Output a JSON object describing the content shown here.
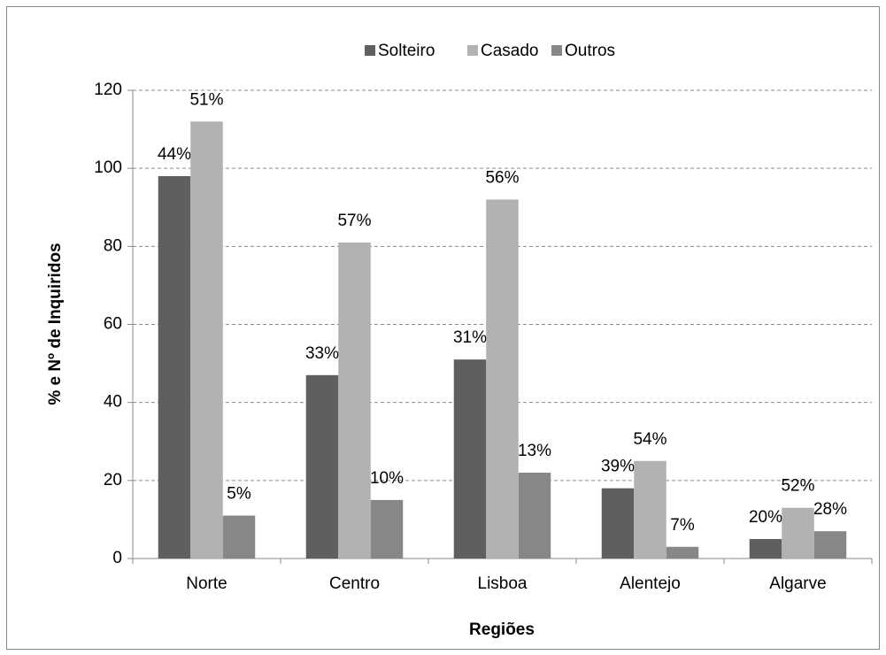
{
  "chart_data": {
    "type": "bar",
    "x_label": "Regiões",
    "y_label": "% e Nº de Inquiridos",
    "categories": [
      "Norte",
      "Centro",
      "Lisboa",
      "Alentejo",
      "Algarve"
    ],
    "series": [
      {
        "name": "Solteiro",
        "color": "#5f5f5f",
        "values": [
          98,
          47,
          51,
          18,
          5
        ],
        "data_labels": [
          "44%",
          "33%",
          "31%",
          "39%",
          "20%"
        ]
      },
      {
        "name": "Casado",
        "color": "#b2b2b2",
        "values": [
          112,
          81,
          92,
          25,
          13
        ],
        "data_labels": [
          "51%",
          "57%",
          "56%",
          "54%",
          "52%"
        ]
      },
      {
        "name": "Outros",
        "color": "#878787",
        "values": [
          11,
          15,
          22,
          3,
          7
        ],
        "data_labels": [
          "5%",
          "10%",
          "13%",
          "7%",
          "28%"
        ]
      }
    ],
    "ylim": [
      0,
      120
    ],
    "yticks": [
      0,
      20,
      40,
      60,
      80,
      100,
      120
    ],
    "grid": true,
    "legend": "top"
  }
}
